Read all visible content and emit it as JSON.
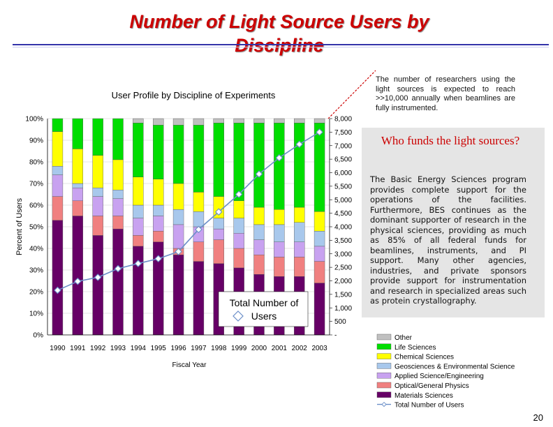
{
  "slide": {
    "title": "Number of Light Source Users by Discipline",
    "note": "The number of researchers using the light sources is expected to reach >>10,000 annually when beamlines are fully instrumented.",
    "who_title": "Who funds the light sources?",
    "body": "The Basic Energy Sciences program provides complete support for the operations of the facilities. Furthermore, BES continues as the dominant supporter of research in the physical sciences, providing as much as 85% of all federal funds for beamlines, instruments, and PI support. Many other agencies, industries, and private sponsors provide support for instrumentation and research in specialized areas such as protein crystallography.",
    "page_number": "20"
  },
  "chart_data": {
    "type": "bar",
    "stacked": true,
    "title": "User Profile by Discipline of Experiments",
    "xlabel": "Fiscal Year",
    "ylabel": "Percent of Users",
    "categories": [
      "1990",
      "1991",
      "1992",
      "1993",
      "1994",
      "1995",
      "1996",
      "1997",
      "1998",
      "1999",
      "2000",
      "2001",
      "2002",
      "2003"
    ],
    "ylim": [
      0,
      100
    ],
    "y_ticks": [
      "0%",
      "10%",
      "20%",
      "30%",
      "40%",
      "50%",
      "60%",
      "70%",
      "80%",
      "90%",
      "100%"
    ],
    "y2_ticks": [
      "-",
      "500",
      "1,000",
      "1,500",
      "2,000",
      "2,500",
      "3,000",
      "3,500",
      "4,000",
      "4,500",
      "5,000",
      "5,500",
      "6,000",
      "6,500",
      "7,000",
      "7,500",
      "8,000"
    ],
    "y2lim": [
      0,
      8000
    ],
    "colors": {
      "Materials Sciences": "#660066",
      "Optical/General Physics": "#f08080",
      "Applied Science/Engineering": "#c8a2f0",
      "Geosciences & Environmental Science": "#a8c8ec",
      "Chemical Sciences": "#ffff00",
      "Life Sciences": "#00dd00",
      "Other": "#c0c0c0",
      "Total Number of Users": "#6a8ec8"
    },
    "series": [
      {
        "name": "Materials Sciences",
        "values": [
          53,
          55,
          46,
          49,
          41,
          43,
          37,
          34,
          33,
          31,
          28,
          27,
          27,
          24
        ]
      },
      {
        "name": "Optical/General Physics",
        "values": [
          11,
          7,
          9,
          6,
          5,
          5,
          3,
          9,
          11,
          9,
          9,
          9,
          9,
          10
        ]
      },
      {
        "name": "Applied Science/Engineering",
        "values": [
          10,
          6,
          9,
          8,
          8,
          7,
          11,
          7,
          5,
          7,
          7,
          7,
          7,
          7
        ]
      },
      {
        "name": "Geosciences & Environmental Science",
        "values": [
          4,
          2,
          4,
          4,
          6,
          5,
          7,
          7,
          5,
          7,
          7,
          8,
          9,
          7
        ]
      },
      {
        "name": "Chemical Sciences",
        "values": [
          16,
          16,
          15,
          14,
          13,
          12,
          12,
          9,
          10,
          8,
          8,
          7,
          7,
          9
        ]
      },
      {
        "name": "Life Sciences",
        "values": [
          6,
          14,
          17,
          19,
          25,
          25,
          27,
          31,
          34,
          36,
          39,
          40,
          39,
          41
        ]
      },
      {
        "name": "Other",
        "values": [
          0,
          0,
          0,
          0,
          2,
          3,
          3,
          3,
          2,
          2,
          2,
          2,
          2,
          2
        ]
      }
    ],
    "line": {
      "name": "Total Number of Users",
      "values": [
        1650,
        1980,
        2130,
        2450,
        2640,
        2820,
        3080,
        3900,
        4550,
        5200,
        5950,
        6550,
        7050,
        7500
      ]
    },
    "annotation": "Total Number of Users",
    "legend": [
      "Other",
      "Life Sciences",
      "Chemical Sciences",
      "Geosciences & Environmental Science",
      "Applied Science/Engineering",
      "Optical/General Physics",
      "Materials Sciences",
      "Total Number of Users"
    ],
    "legend_position": "bottom-right"
  }
}
